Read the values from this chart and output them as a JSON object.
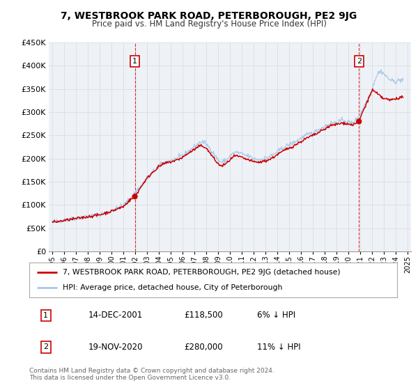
{
  "title": "7, WESTBROOK PARK ROAD, PETERBOROUGH, PE2 9JG",
  "subtitle": "Price paid vs. HM Land Registry's House Price Index (HPI)",
  "ylim": [
    0,
    450000
  ],
  "xlim": [
    1994.7,
    2025.3
  ],
  "yticks": [
    0,
    50000,
    100000,
    150000,
    200000,
    250000,
    300000,
    350000,
    400000,
    450000
  ],
  "ytick_labels": [
    "£0",
    "£50K",
    "£100K",
    "£150K",
    "£200K",
    "£250K",
    "£300K",
    "£350K",
    "£400K",
    "£450K"
  ],
  "xticks": [
    1995,
    1996,
    1997,
    1998,
    1999,
    2000,
    2001,
    2002,
    2003,
    2004,
    2005,
    2006,
    2007,
    2008,
    2009,
    2010,
    2011,
    2012,
    2013,
    2014,
    2015,
    2016,
    2017,
    2018,
    2019,
    2020,
    2021,
    2022,
    2023,
    2024,
    2025
  ],
  "sale1_date": 2001.96,
  "sale1_price": 118500,
  "sale1_label": "1",
  "sale2_date": 2020.88,
  "sale2_price": 280000,
  "sale2_label": "2",
  "red_line_color": "#cc0000",
  "blue_line_color": "#a8c8e8",
  "dot_color": "#cc0000",
  "vline_color": "#cc0000",
  "background_color": "#eef2f7",
  "grid_color": "#d8dde3",
  "legend_label_red": "7, WESTBROOK PARK ROAD, PETERBOROUGH, PE2 9JG (detached house)",
  "legend_label_blue": "HPI: Average price, detached house, City of Peterborough",
  "annotation1_date": "14-DEC-2001",
  "annotation1_price": "£118,500",
  "annotation1_hpi": "6% ↓ HPI",
  "annotation2_date": "19-NOV-2020",
  "annotation2_price": "£280,000",
  "annotation2_hpi": "11% ↓ HPI",
  "footer": "Contains HM Land Registry data © Crown copyright and database right 2024.\nThis data is licensed under the Open Government Licence v3.0."
}
